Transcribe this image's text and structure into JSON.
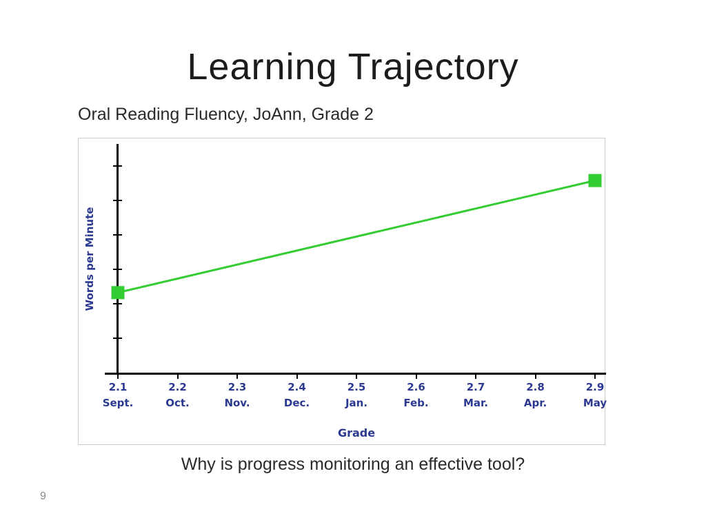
{
  "slide": {
    "title": "Learning Trajectory",
    "subtitle": "Oral Reading Fluency, JoAnn, Grade 2",
    "question": "Why is progress monitoring an effective tool?",
    "page_number": "9"
  },
  "colors": {
    "title-color": "#1c1c1c",
    "body-color": "#2a2a2a",
    "label-navy": "#2b3990",
    "line-green": "#33cc33",
    "axis-black": "#000000",
    "chart-border": "#cccccc",
    "page-number-gray": "#8a8a8a"
  },
  "chart_data": {
    "type": "line",
    "title": "",
    "xlabel": "Grade",
    "ylabel": "Words per Minute",
    "x_ticks": [
      {
        "grade": "2.1",
        "month": "Sept."
      },
      {
        "grade": "2.2",
        "month": "Oct."
      },
      {
        "grade": "2.3",
        "month": "Nov."
      },
      {
        "grade": "2.4",
        "month": "Dec."
      },
      {
        "grade": "2.5",
        "month": "Jan."
      },
      {
        "grade": "2.6",
        "month": "Feb."
      },
      {
        "grade": "2.7",
        "month": "Mar."
      },
      {
        "grade": "2.8",
        "month": "Apr."
      },
      {
        "grade": "2.9",
        "month": "May"
      }
    ],
    "xlim": [
      2.1,
      2.9
    ],
    "ylim": [
      0,
      100
    ],
    "y_axis_tick_count": 6,
    "y_axis_numeric_labels_shown": false,
    "grid": false,
    "legend": false,
    "series": [
      {
        "name": "Oral Reading Fluency trajectory",
        "x": [
          2.1,
          2.9
        ],
        "values": [
          35,
          84
        ],
        "marker": "square",
        "color": "#33cc33"
      }
    ]
  }
}
